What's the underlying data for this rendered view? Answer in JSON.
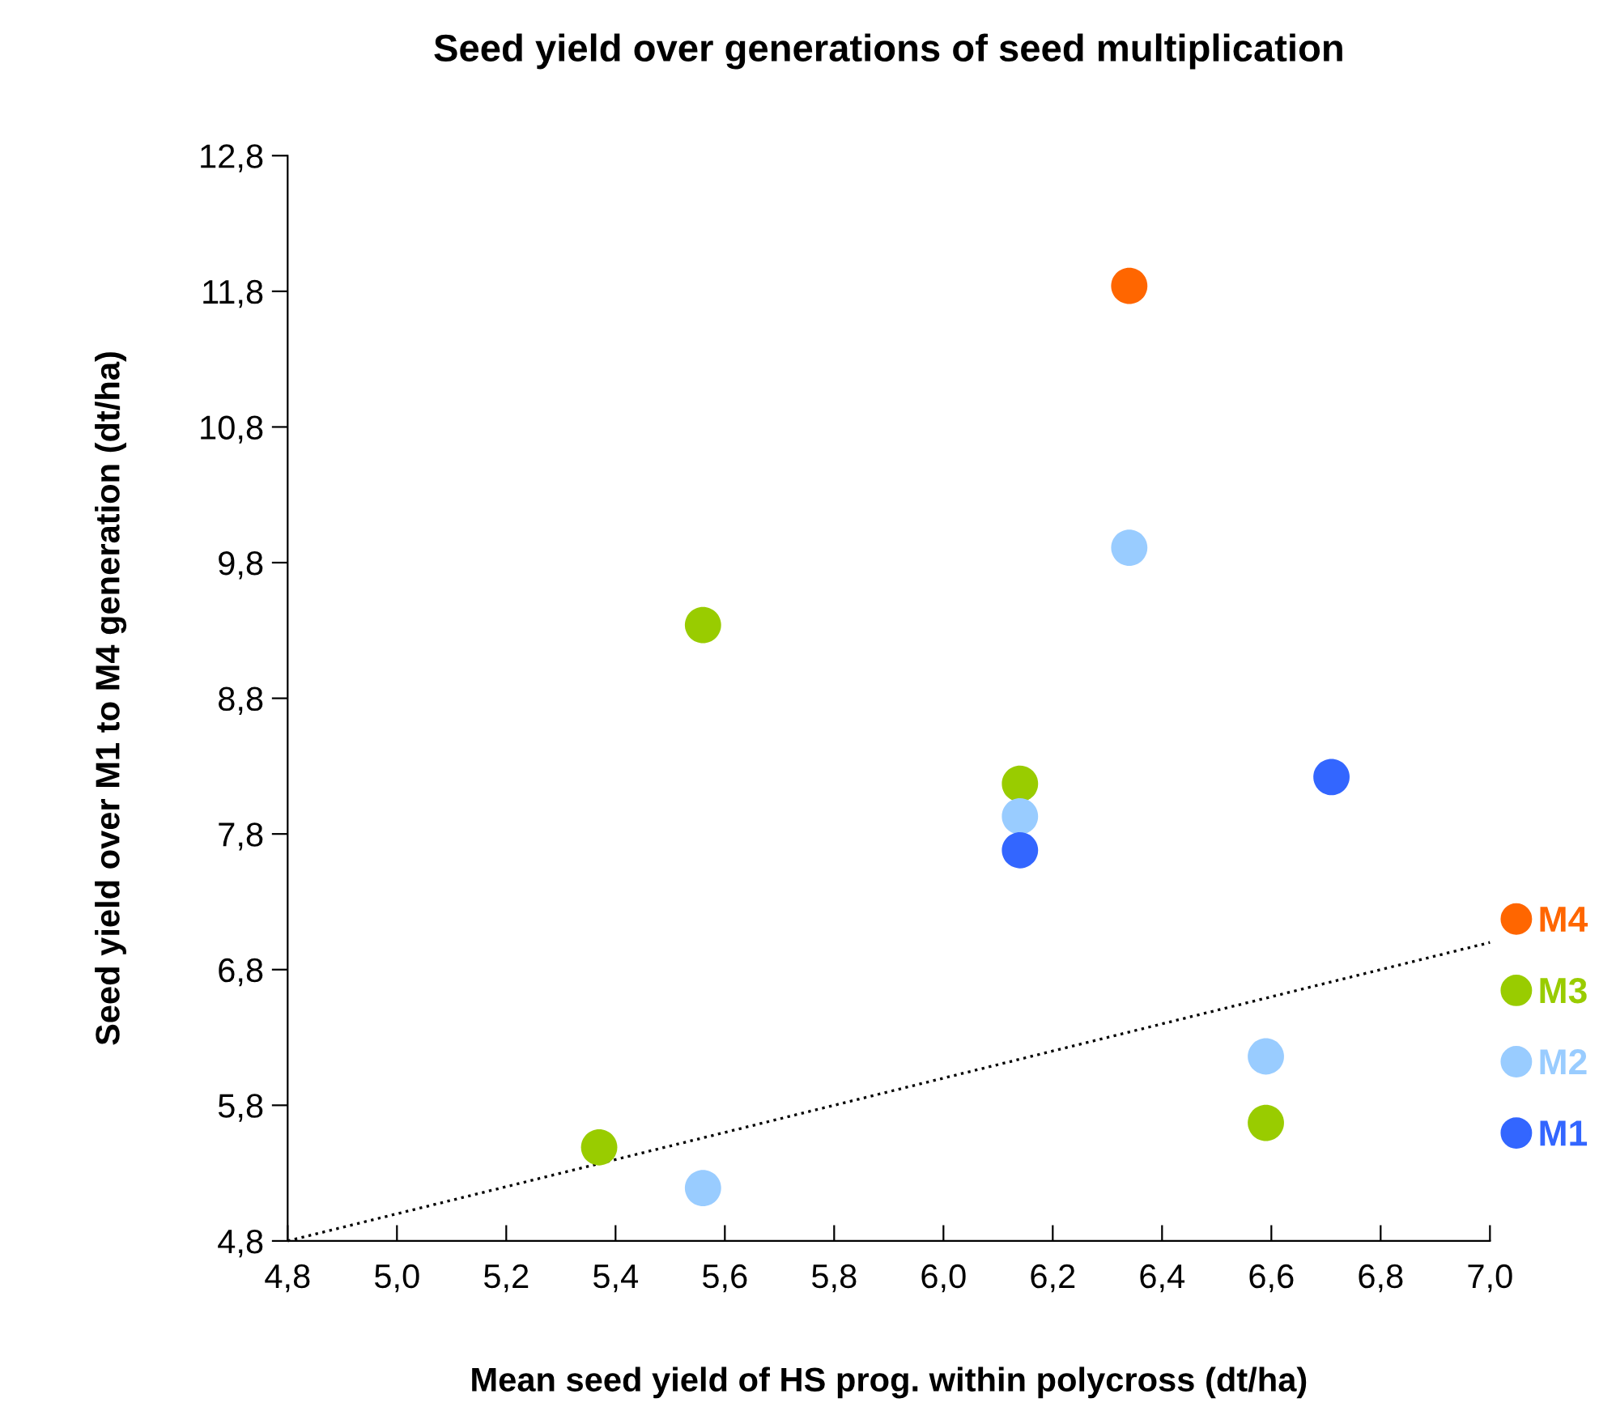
{
  "chart_data": {
    "type": "scatter",
    "title": "Seed yield over generations of seed multiplication",
    "xlabel": "Mean seed yield of HS prog. within polycross (dt/ha)",
    "ylabel": "Seed yield over M1 to M4 generation (dt/ha)",
    "series": [
      {
        "name": "M4",
        "color": "#ff6600",
        "x": [
          6.34
        ],
        "values": [
          11.84
        ]
      },
      {
        "name": "M3",
        "color": "#99cc00",
        "x": [
          5.37,
          5.56,
          6.14,
          6.59
        ],
        "values": [
          5.49,
          9.34,
          8.17,
          5.67
        ]
      },
      {
        "name": "M2",
        "color": "#99ccff",
        "x": [
          5.56,
          6.14,
          6.34,
          6.59
        ],
        "values": [
          5.19,
          7.93,
          9.91,
          6.16
        ]
      },
      {
        "name": "M1",
        "color": "#3366ff",
        "x": [
          6.14,
          6.71
        ],
        "values": [
          7.68,
          8.22
        ]
      },
      {
        "type": "line",
        "color": "#000000",
        "line_style": "dotted",
        "marker": "none",
        "x": [
          4.8,
          7.0
        ],
        "values": [
          4.8,
          7.0
        ]
      }
    ],
    "marker": "circle",
    "xlim": [
      4.8,
      7.0
    ],
    "xticks": [
      {
        "value": 4.8,
        "label": "4,8"
      },
      {
        "value": 5.0,
        "label": "5,0"
      },
      {
        "value": 5.2,
        "label": "5,2"
      },
      {
        "value": 5.4,
        "label": "5,4"
      },
      {
        "value": 5.6,
        "label": "5,6"
      },
      {
        "value": 5.8,
        "label": "5,8"
      },
      {
        "value": 6.0,
        "label": "6,0"
      },
      {
        "value": 6.2,
        "label": "6,2"
      },
      {
        "value": 6.4,
        "label": "6,4"
      },
      {
        "value": 6.6,
        "label": "6,6"
      },
      {
        "value": 6.8,
        "label": "6,8"
      },
      {
        "value": 7.0,
        "label": "7,0"
      }
    ],
    "ylim": [
      4.8,
      12.8
    ],
    "yticks": [
      {
        "value": 4.8,
        "label": "4,8"
      },
      {
        "value": 5.8,
        "label": "5,8"
      },
      {
        "value": 6.8,
        "label": "6,8"
      },
      {
        "value": 7.8,
        "label": "7,8"
      },
      {
        "value": 8.8,
        "label": "8,8"
      },
      {
        "value": 9.8,
        "label": "9,8"
      },
      {
        "value": 10.8,
        "label": "10,8"
      },
      {
        "value": 11.8,
        "label": "11,8"
      },
      {
        "value": 12.8,
        "label": "12,8"
      }
    ],
    "grid": false,
    "legend": "right"
  }
}
